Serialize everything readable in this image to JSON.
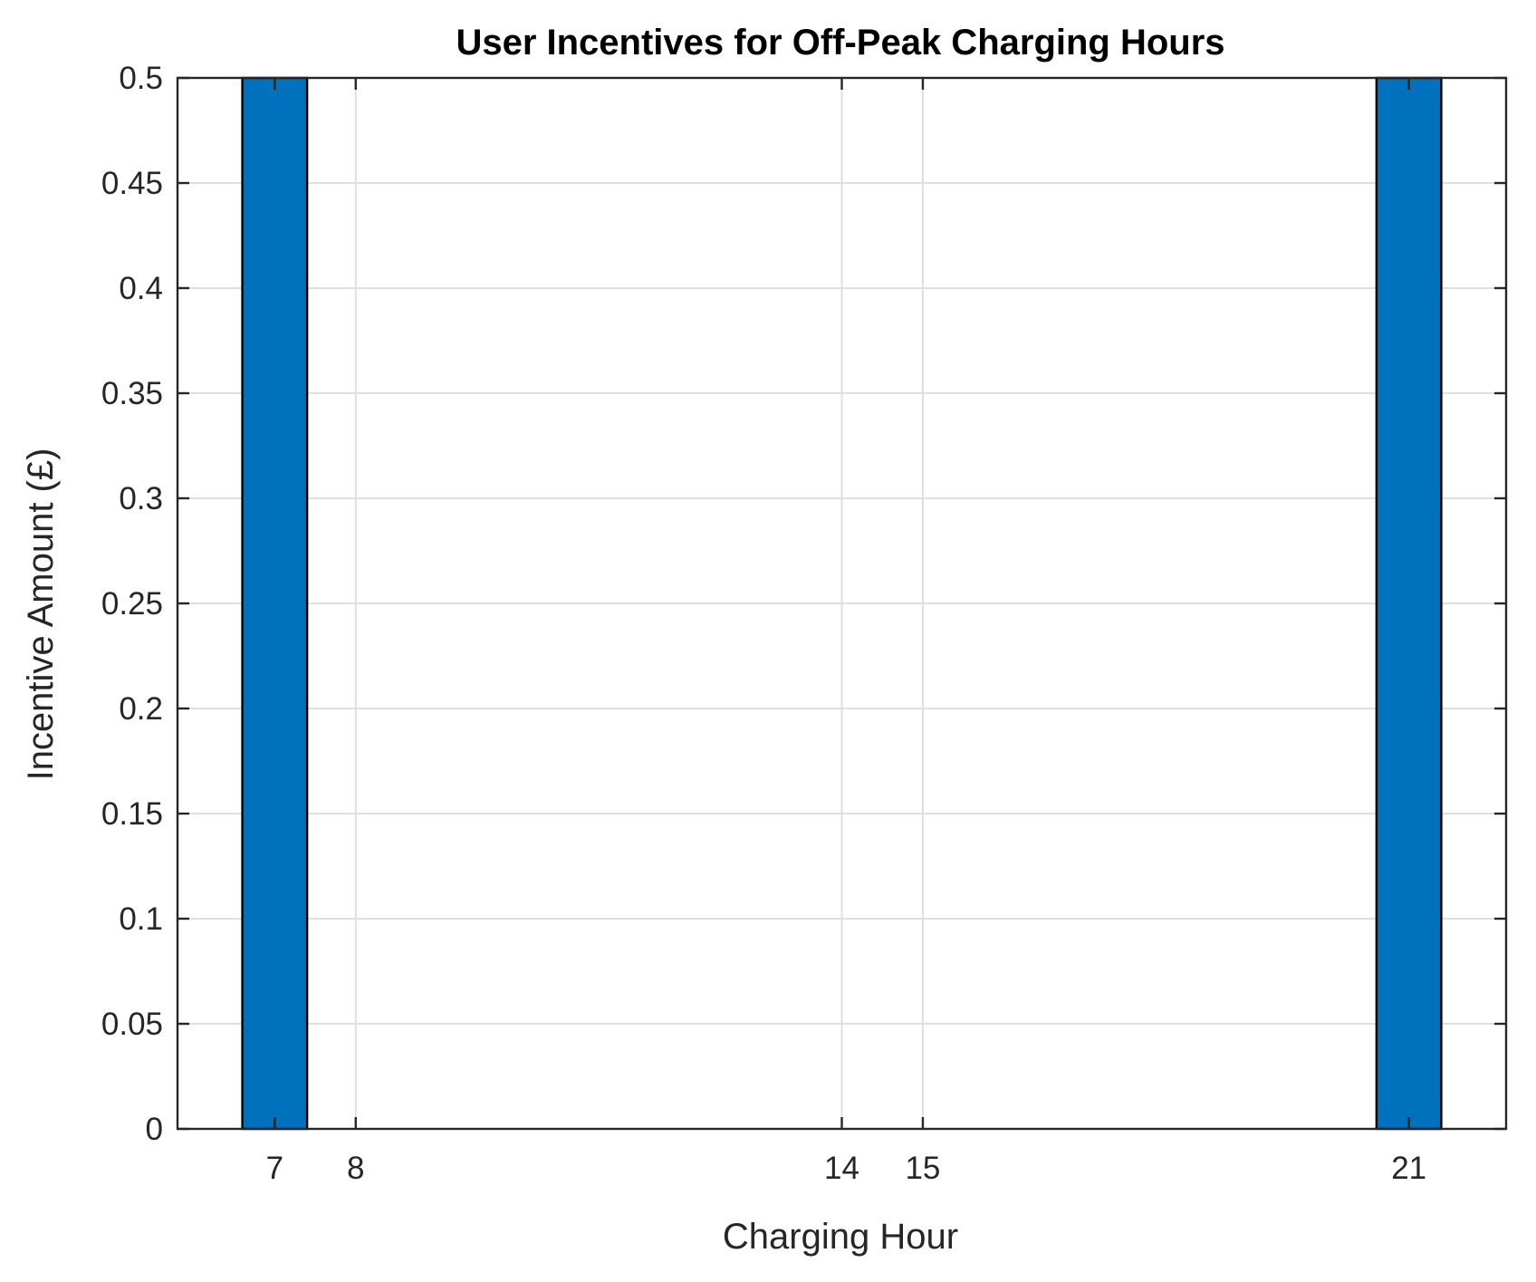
{
  "chart_data": {
    "type": "bar",
    "title": "User Incentives for Off-Peak Charging Hours",
    "xlabel": "Charging Hour",
    "ylabel": "Incentive Amount (£)",
    "x": [
      7,
      8,
      14,
      15,
      21
    ],
    "values": [
      0.5,
      0,
      0,
      0,
      0.5
    ],
    "xticks": [
      "7",
      "8",
      "14",
      "15",
      "21"
    ],
    "yticks": [
      "0",
      "0.05",
      "0.1",
      "0.15",
      "0.2",
      "0.25",
      "0.3",
      "0.35",
      "0.4",
      "0.45",
      "0.5"
    ],
    "xlim": [
      5.8,
      22.2
    ],
    "ylim": [
      0,
      0.5
    ],
    "bar_width": 0.8,
    "grid": true,
    "bar_color": "#0072BD"
  }
}
